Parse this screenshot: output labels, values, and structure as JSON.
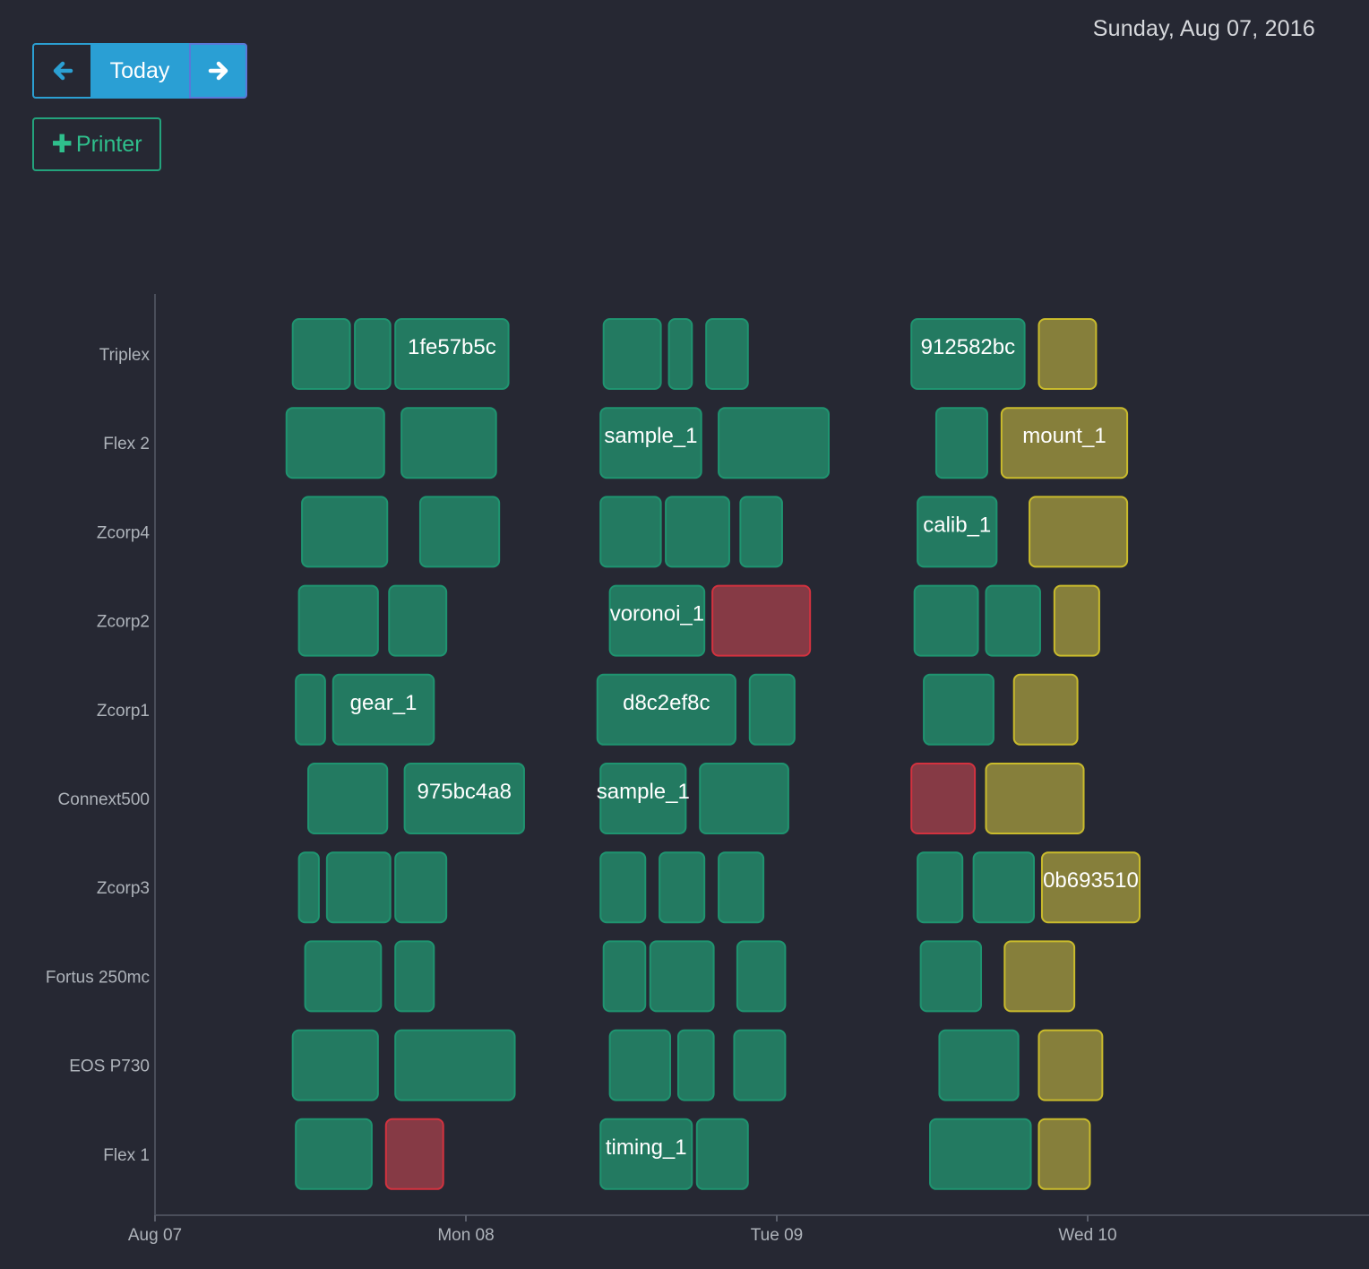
{
  "header": {
    "date_label": "Sunday, Aug 07, 2016"
  },
  "nav": {
    "prev_icon": "arrow-left-icon",
    "today_label": "Today",
    "next_icon": "arrow-right-icon"
  },
  "add_printer": {
    "icon": "plus-icon",
    "label": "Printer"
  },
  "colors": {
    "background": "#262833",
    "ok": "#237a61",
    "ok_border": "#1f9470",
    "warning": "#867f3b",
    "warning_border": "#c9bb2c",
    "error": "#863a45",
    "error_border": "#d3323f",
    "accent": "#2a9fd4"
  },
  "chart_data": {
    "type": "gantt",
    "x_axis": {
      "start": "Aug 07",
      "ticks": [
        "Aug 07",
        "Mon 08",
        "Tue 09",
        "Wed 10"
      ],
      "range_days": [
        0,
        3.9
      ]
    },
    "rows": [
      {
        "printer": "Triplex",
        "jobs": [
          {
            "start": 0.44,
            "end": 0.63,
            "status": "ok"
          },
          {
            "start": 0.64,
            "end": 0.76,
            "status": "ok"
          },
          {
            "start": 0.77,
            "end": 1.14,
            "status": "ok",
            "label": "1fe57b5c"
          },
          {
            "start": 1.44,
            "end": 1.63,
            "status": "ok"
          },
          {
            "start": 1.65,
            "end": 1.73,
            "status": "ok"
          },
          {
            "start": 1.77,
            "end": 1.91,
            "status": "ok"
          },
          {
            "start": 2.43,
            "end": 2.8,
            "status": "ok",
            "label": "912582bc"
          },
          {
            "start": 2.84,
            "end": 3.03,
            "status": "warning"
          }
        ]
      },
      {
        "printer": "Flex 2",
        "jobs": [
          {
            "start": 0.42,
            "end": 0.74,
            "status": "ok"
          },
          {
            "start": 0.79,
            "end": 1.1,
            "status": "ok"
          },
          {
            "start": 1.43,
            "end": 1.76,
            "status": "ok",
            "label": "sample_1"
          },
          {
            "start": 1.81,
            "end": 2.17,
            "status": "ok"
          },
          {
            "start": 2.51,
            "end": 2.68,
            "status": "ok"
          },
          {
            "start": 2.72,
            "end": 3.13,
            "status": "warning",
            "label": "mount_1"
          }
        ]
      },
      {
        "printer": "Zcorp4",
        "jobs": [
          {
            "start": 0.47,
            "end": 0.75,
            "status": "ok"
          },
          {
            "start": 0.85,
            "end": 1.11,
            "status": "ok"
          },
          {
            "start": 1.43,
            "end": 1.63,
            "status": "ok"
          },
          {
            "start": 1.64,
            "end": 1.85,
            "status": "ok"
          },
          {
            "start": 1.88,
            "end": 2.02,
            "status": "ok"
          },
          {
            "start": 2.45,
            "end": 2.71,
            "status": "ok",
            "label": "calib_1"
          },
          {
            "start": 2.81,
            "end": 3.13,
            "status": "warning"
          }
        ]
      },
      {
        "printer": "Zcorp2",
        "jobs": [
          {
            "start": 0.46,
            "end": 0.72,
            "status": "ok"
          },
          {
            "start": 0.75,
            "end": 0.94,
            "status": "ok"
          },
          {
            "start": 1.46,
            "end": 1.77,
            "status": "ok",
            "label": "voronoi_1"
          },
          {
            "start": 1.79,
            "end": 2.11,
            "status": "error"
          },
          {
            "start": 2.44,
            "end": 2.65,
            "status": "ok"
          },
          {
            "start": 2.67,
            "end": 2.85,
            "status": "ok"
          },
          {
            "start": 2.89,
            "end": 3.04,
            "status": "warning"
          }
        ]
      },
      {
        "printer": "Zcorp1",
        "jobs": [
          {
            "start": 0.45,
            "end": 0.55,
            "status": "ok"
          },
          {
            "start": 0.57,
            "end": 0.9,
            "status": "ok",
            "label": "gear_1"
          },
          {
            "start": 1.42,
            "end": 1.87,
            "status": "ok",
            "label": "d8c2ef8c"
          },
          {
            "start": 1.91,
            "end": 2.06,
            "status": "ok"
          },
          {
            "start": 2.47,
            "end": 2.7,
            "status": "ok"
          },
          {
            "start": 2.76,
            "end": 2.97,
            "status": "warning"
          }
        ]
      },
      {
        "printer": "Connext500",
        "jobs": [
          {
            "start": 0.49,
            "end": 0.75,
            "status": "ok"
          },
          {
            "start": 0.8,
            "end": 1.19,
            "status": "ok",
            "label": "975bc4a8"
          },
          {
            "start": 1.43,
            "end": 1.71,
            "status": "ok",
            "label": "sample_1"
          },
          {
            "start": 1.75,
            "end": 2.04,
            "status": "ok"
          },
          {
            "start": 2.43,
            "end": 2.64,
            "status": "error"
          },
          {
            "start": 2.67,
            "end": 2.99,
            "status": "warning"
          }
        ]
      },
      {
        "printer": "Zcorp3",
        "jobs": [
          {
            "start": 0.46,
            "end": 0.53,
            "status": "ok"
          },
          {
            "start": 0.55,
            "end": 0.76,
            "status": "ok"
          },
          {
            "start": 0.77,
            "end": 0.94,
            "status": "ok"
          },
          {
            "start": 1.43,
            "end": 1.58,
            "status": "ok"
          },
          {
            "start": 1.62,
            "end": 1.77,
            "status": "ok"
          },
          {
            "start": 1.81,
            "end": 1.96,
            "status": "ok"
          },
          {
            "start": 2.45,
            "end": 2.6,
            "status": "ok"
          },
          {
            "start": 2.63,
            "end": 2.83,
            "status": "ok"
          },
          {
            "start": 2.85,
            "end": 3.17,
            "status": "warning",
            "label": "0b693510"
          }
        ]
      },
      {
        "printer": "Fortus 250mc",
        "jobs": [
          {
            "start": 0.48,
            "end": 0.73,
            "status": "ok"
          },
          {
            "start": 0.77,
            "end": 0.9,
            "status": "ok"
          },
          {
            "start": 1.44,
            "end": 1.58,
            "status": "ok"
          },
          {
            "start": 1.59,
            "end": 1.8,
            "status": "ok"
          },
          {
            "start": 1.87,
            "end": 2.03,
            "status": "ok"
          },
          {
            "start": 2.46,
            "end": 2.66,
            "status": "ok"
          },
          {
            "start": 2.73,
            "end": 2.96,
            "status": "warning"
          }
        ]
      },
      {
        "printer": "EOS P730",
        "jobs": [
          {
            "start": 0.44,
            "end": 0.72,
            "status": "ok"
          },
          {
            "start": 0.77,
            "end": 1.16,
            "status": "ok"
          },
          {
            "start": 1.46,
            "end": 1.66,
            "status": "ok"
          },
          {
            "start": 1.68,
            "end": 1.8,
            "status": "ok"
          },
          {
            "start": 1.86,
            "end": 2.03,
            "status": "ok"
          },
          {
            "start": 2.52,
            "end": 2.78,
            "status": "ok"
          },
          {
            "start": 2.84,
            "end": 3.05,
            "status": "warning"
          }
        ]
      },
      {
        "printer": "Flex 1",
        "jobs": [
          {
            "start": 0.45,
            "end": 0.7,
            "status": "ok"
          },
          {
            "start": 0.74,
            "end": 0.93,
            "status": "error"
          },
          {
            "start": 1.43,
            "end": 1.73,
            "status": "ok",
            "label": "timing_1"
          },
          {
            "start": 1.74,
            "end": 1.91,
            "status": "ok"
          },
          {
            "start": 2.49,
            "end": 2.82,
            "status": "ok"
          },
          {
            "start": 2.84,
            "end": 3.01,
            "status": "warning"
          }
        ]
      }
    ]
  }
}
